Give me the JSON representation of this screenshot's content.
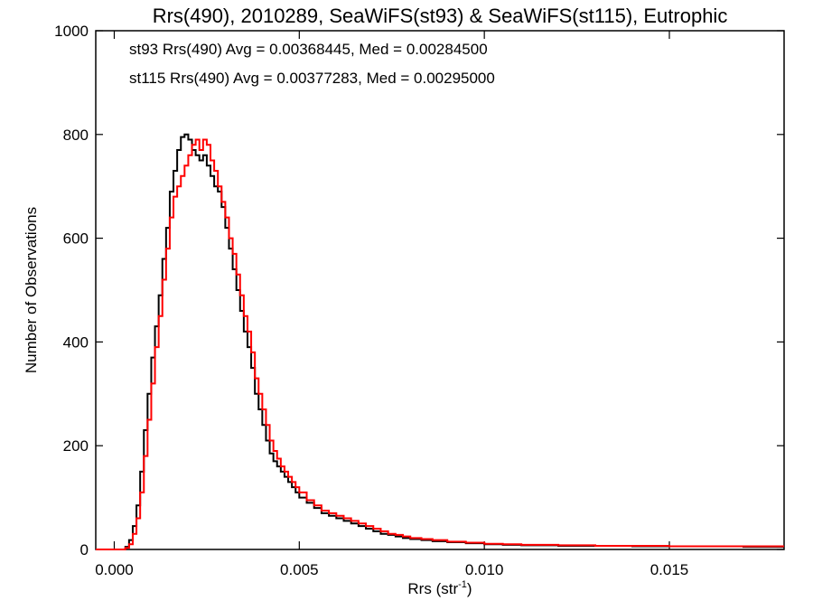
{
  "chart_data": {
    "type": "line",
    "title": "Rrs(490), 2010289, SeaWiFS(st93) & SeaWiFS(st115), Eutrophic",
    "xlabel": "Rrs (str",
    "xlabel_sup": "-1",
    "xlabel_close": ")",
    "ylabel": "Number of Observations",
    "xlim": [
      -0.0005,
      0.0181
    ],
    "ylim": [
      0,
      1000
    ],
    "x_ticks": [
      0.0,
      0.005,
      0.01,
      0.015
    ],
    "x_tick_labels": [
      "0.000",
      "0.005",
      "0.010",
      "0.015"
    ],
    "y_ticks": [
      0,
      200,
      400,
      600,
      800,
      1000
    ],
    "y_tick_labels": [
      "0",
      "200",
      "400",
      "600",
      "800",
      "1000"
    ],
    "grid": false,
    "legend_placement": "top-left",
    "step": true,
    "series": [
      {
        "legend": "st93 Rrs(490) Avg = 0.00368445, Med = 0.00284500",
        "color": "#000000",
        "x": [
          -0.0005,
          0.0,
          0.0003,
          0.0004,
          0.0005,
          0.0006,
          0.0007,
          0.0008,
          0.0009,
          0.001,
          0.0011,
          0.0012,
          0.0013,
          0.0014,
          0.0015,
          0.0016,
          0.0017,
          0.0018,
          0.0019,
          0.002,
          0.0021,
          0.0022,
          0.0023,
          0.0024,
          0.0025,
          0.0026,
          0.0027,
          0.0028,
          0.0029,
          0.003,
          0.0031,
          0.0032,
          0.0033,
          0.0034,
          0.0035,
          0.0036,
          0.0037,
          0.0038,
          0.0039,
          0.004,
          0.0041,
          0.0042,
          0.0043,
          0.0044,
          0.0045,
          0.0046,
          0.0047,
          0.0048,
          0.0049,
          0.005,
          0.0052,
          0.0054,
          0.0056,
          0.0058,
          0.006,
          0.0062,
          0.0064,
          0.0066,
          0.0068,
          0.007,
          0.0072,
          0.0074,
          0.0076,
          0.0078,
          0.008,
          0.0083,
          0.0086,
          0.009,
          0.0095,
          0.01,
          0.0105,
          0.011,
          0.012,
          0.013,
          0.014,
          0.015,
          0.016,
          0.017,
          0.0181
        ],
        "y": [
          0,
          0,
          5,
          18,
          45,
          85,
          150,
          230,
          300,
          370,
          430,
          490,
          560,
          620,
          690,
          730,
          770,
          795,
          800,
          790,
          770,
          760,
          750,
          760,
          740,
          720,
          700,
          690,
          660,
          620,
          580,
          540,
          500,
          460,
          420,
          390,
          350,
          300,
          270,
          240,
          210,
          185,
          170,
          160,
          150,
          140,
          130,
          120,
          110,
          100,
          90,
          80,
          70,
          65,
          60,
          55,
          50,
          45,
          40,
          35,
          30,
          28,
          25,
          22,
          20,
          18,
          16,
          14,
          12,
          10,
          9,
          8,
          7,
          7,
          6,
          6,
          6,
          5,
          5
        ]
      },
      {
        "legend": "st115 Rrs(490) Avg = 0.00377283, Med = 0.00295000",
        "color": "#ff0000",
        "x": [
          -0.0005,
          0.0,
          0.0003,
          0.0004,
          0.0005,
          0.0006,
          0.0007,
          0.0008,
          0.0009,
          0.001,
          0.0011,
          0.0012,
          0.0013,
          0.0014,
          0.0015,
          0.0016,
          0.0017,
          0.0018,
          0.0019,
          0.002,
          0.0021,
          0.0022,
          0.0023,
          0.0024,
          0.0025,
          0.0026,
          0.0027,
          0.0028,
          0.0029,
          0.003,
          0.0031,
          0.0032,
          0.0033,
          0.0034,
          0.0035,
          0.0036,
          0.0037,
          0.0038,
          0.0039,
          0.004,
          0.0041,
          0.0042,
          0.0043,
          0.0044,
          0.0045,
          0.0046,
          0.0047,
          0.0048,
          0.0049,
          0.005,
          0.0052,
          0.0054,
          0.0056,
          0.0058,
          0.006,
          0.0062,
          0.0064,
          0.0066,
          0.0068,
          0.007,
          0.0072,
          0.0074,
          0.0076,
          0.0078,
          0.008,
          0.0083,
          0.0086,
          0.009,
          0.0095,
          0.01,
          0.0105,
          0.011,
          0.012,
          0.013,
          0.014,
          0.015,
          0.016,
          0.017,
          0.0181
        ],
        "y": [
          0,
          0,
          3,
          10,
          30,
          60,
          110,
          180,
          250,
          320,
          390,
          450,
          520,
          580,
          640,
          680,
          700,
          720,
          740,
          760,
          780,
          790,
          770,
          790,
          780,
          750,
          730,
          700,
          670,
          640,
          600,
          570,
          530,
          490,
          450,
          420,
          380,
          330,
          300,
          270,
          240,
          210,
          190,
          175,
          160,
          150,
          140,
          130,
          120,
          110,
          95,
          85,
          75,
          70,
          65,
          60,
          55,
          50,
          45,
          40,
          35,
          30,
          28,
          25,
          22,
          20,
          18,
          15,
          13,
          11,
          10,
          9,
          8,
          7,
          7,
          6,
          6,
          6,
          6
        ]
      }
    ]
  }
}
